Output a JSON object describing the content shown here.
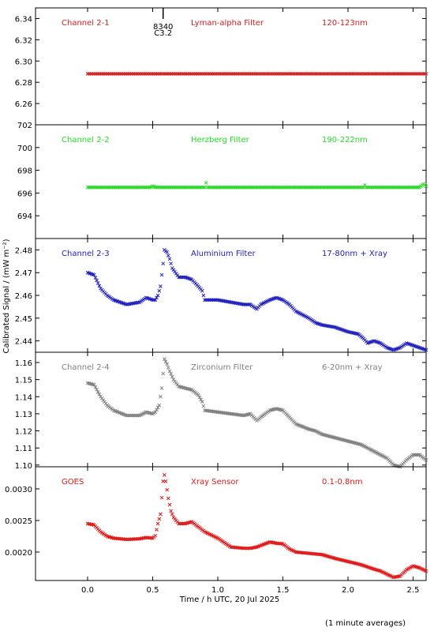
{
  "figure": {
    "ylabel": "Calibrated Signal / (mW m⁻²)",
    "xlabel": "Time / h UTC, 20 Jul 2025",
    "footnote": "(1 minute averages)",
    "annotation": {
      "x": 0.58,
      "label_top": "8340",
      "label_bottom": "C3.2"
    }
  },
  "chart_data": [
    {
      "type": "scatter",
      "labels": [
        "Channel 2-1",
        "Lyman-alpha Filter",
        "120-123nm"
      ],
      "color": "#d42020",
      "ylim": [
        6.24,
        6.35
      ],
      "yticks": [
        6.26,
        6.28,
        6.3,
        6.32,
        6.34
      ],
      "ytick_labels": [
        "6.26",
        "6.28",
        "6.30",
        "6.32",
        "6.34"
      ],
      "xlim": [
        -0.4,
        2.6
      ],
      "points": [
        [
          0.0,
          6.288
        ],
        [
          0.5,
          6.288
        ],
        [
          1.0,
          6.288
        ],
        [
          1.5,
          6.288
        ],
        [
          2.0,
          6.288
        ],
        [
          2.6,
          6.288
        ]
      ]
    },
    {
      "type": "scatter",
      "labels": [
        "Channel 2-2",
        "Herzberg Filter",
        "190-222nm"
      ],
      "color": "#22dd22",
      "ylim": [
        692,
        702
      ],
      "yticks": [
        694,
        696,
        698,
        700,
        702
      ],
      "ytick_labels": [
        "694",
        "696",
        "698",
        "700",
        "702"
      ],
      "xlim": [
        -0.4,
        2.6
      ],
      "points": [
        [
          0.0,
          696.5
        ],
        [
          0.48,
          696.5
        ],
        [
          0.5,
          696.6
        ],
        [
          0.52,
          696.5
        ],
        [
          0.9,
          696.5
        ],
        [
          0.91,
          696.9
        ],
        [
          0.92,
          696.5
        ],
        [
          2.12,
          696.5
        ],
        [
          2.13,
          696.7
        ],
        [
          2.14,
          696.5
        ],
        [
          2.55,
          696.5
        ],
        [
          2.58,
          696.8
        ],
        [
          2.6,
          696.6
        ]
      ]
    },
    {
      "type": "scatter",
      "labels": [
        "Channel 2-3",
        "Aluminium Filter",
        "17-80nm + Xray"
      ],
      "color": "#2020c0",
      "ylim": [
        2.435,
        2.485
      ],
      "yticks": [
        2.44,
        2.45,
        2.46,
        2.47,
        2.48
      ],
      "ytick_labels": [
        "2.44",
        "2.45",
        "2.46",
        "2.47",
        "2.48"
      ],
      "xlim": [
        -0.4,
        2.6
      ],
      "points": [
        [
          0.0,
          2.47
        ],
        [
          0.05,
          2.469
        ],
        [
          0.1,
          2.463
        ],
        [
          0.15,
          2.46
        ],
        [
          0.2,
          2.458
        ],
        [
          0.3,
          2.456
        ],
        [
          0.4,
          2.457
        ],
        [
          0.45,
          2.459
        ],
        [
          0.5,
          2.458
        ],
        [
          0.52,
          2.458
        ],
        [
          0.54,
          2.46
        ],
        [
          0.56,
          2.464
        ],
        [
          0.58,
          2.474
        ],
        [
          0.59,
          2.48
        ],
        [
          0.61,
          2.479
        ],
        [
          0.63,
          2.476
        ],
        [
          0.65,
          2.472
        ],
        [
          0.7,
          2.468
        ],
        [
          0.75,
          2.468
        ],
        [
          0.8,
          2.467
        ],
        [
          0.85,
          2.464
        ],
        [
          0.88,
          2.462
        ],
        [
          0.9,
          2.458
        ],
        [
          1.0,
          2.458
        ],
        [
          1.1,
          2.457
        ],
        [
          1.2,
          2.456
        ],
        [
          1.25,
          2.456
        ],
        [
          1.3,
          2.454
        ],
        [
          1.33,
          2.456
        ],
        [
          1.4,
          2.458
        ],
        [
          1.45,
          2.459
        ],
        [
          1.5,
          2.458
        ],
        [
          1.55,
          2.456
        ],
        [
          1.6,
          2.453
        ],
        [
          1.7,
          2.45
        ],
        [
          1.75,
          2.448
        ],
        [
          1.8,
          2.447
        ],
        [
          1.9,
          2.446
        ],
        [
          2.0,
          2.444
        ],
        [
          2.08,
          2.443
        ],
        [
          2.12,
          2.441
        ],
        [
          2.15,
          2.439
        ],
        [
          2.2,
          2.44
        ],
        [
          2.25,
          2.439
        ],
        [
          2.3,
          2.437
        ],
        [
          2.35,
          2.436
        ],
        [
          2.4,
          2.437
        ],
        [
          2.45,
          2.439
        ],
        [
          2.5,
          2.438
        ],
        [
          2.55,
          2.437
        ],
        [
          2.6,
          2.436
        ]
      ]
    },
    {
      "type": "scatter",
      "labels": [
        "Channel 2-4",
        "Zirconium Filter",
        "6-20nm + Xray"
      ],
      "color": "#808080",
      "ylim": [
        1.099,
        1.166
      ],
      "yticks": [
        1.1,
        1.11,
        1.12,
        1.13,
        1.14,
        1.15,
        1.16
      ],
      "ytick_labels": [
        "1.10",
        "1.11",
        "1.12",
        "1.13",
        "1.14",
        "1.15",
        "1.16"
      ],
      "xlim": [
        -0.4,
        2.6
      ],
      "points": [
        [
          0.0,
          1.148
        ],
        [
          0.05,
          1.147
        ],
        [
          0.1,
          1.14
        ],
        [
          0.15,
          1.135
        ],
        [
          0.2,
          1.132
        ],
        [
          0.3,
          1.129
        ],
        [
          0.4,
          1.129
        ],
        [
          0.45,
          1.131
        ],
        [
          0.5,
          1.13
        ],
        [
          0.52,
          1.131
        ],
        [
          0.55,
          1.135
        ],
        [
          0.57,
          1.145
        ],
        [
          0.59,
          1.162
        ],
        [
          0.61,
          1.159
        ],
        [
          0.63,
          1.155
        ],
        [
          0.66,
          1.15
        ],
        [
          0.7,
          1.146
        ],
        [
          0.8,
          1.144
        ],
        [
          0.85,
          1.141
        ],
        [
          0.88,
          1.137
        ],
        [
          0.9,
          1.132
        ],
        [
          1.0,
          1.131
        ],
        [
          1.1,
          1.13
        ],
        [
          1.2,
          1.129
        ],
        [
          1.25,
          1.13
        ],
        [
          1.3,
          1.126
        ],
        [
          1.33,
          1.128
        ],
        [
          1.4,
          1.132
        ],
        [
          1.45,
          1.133
        ],
        [
          1.5,
          1.132
        ],
        [
          1.55,
          1.128
        ],
        [
          1.6,
          1.124
        ],
        [
          1.7,
          1.121
        ],
        [
          1.75,
          1.12
        ],
        [
          1.8,
          1.118
        ],
        [
          1.9,
          1.116
        ],
        [
          2.0,
          1.114
        ],
        [
          2.1,
          1.112
        ],
        [
          2.2,
          1.108
        ],
        [
          2.25,
          1.106
        ],
        [
          2.3,
          1.104
        ],
        [
          2.35,
          1.1
        ],
        [
          2.4,
          1.099
        ],
        [
          2.45,
          1.103
        ],
        [
          2.5,
          1.106
        ],
        [
          2.55,
          1.106
        ],
        [
          2.6,
          1.103
        ]
      ]
    },
    {
      "type": "scatter",
      "labels": [
        "GOES",
        "Xray Sensor",
        "0.1-0.8nm"
      ],
      "color": "#e01818",
      "ylim": [
        0.00155,
        0.00335
      ],
      "yticks": [
        0.002,
        0.0025,
        0.003
      ],
      "ytick_labels": [
        "0.0020",
        "0.0025",
        "0.0030"
      ],
      "xlim": [
        -0.4,
        2.6
      ],
      "points": [
        [
          0.0,
          0.00245
        ],
        [
          0.05,
          0.00243
        ],
        [
          0.1,
          0.00232
        ],
        [
          0.15,
          0.00225
        ],
        [
          0.2,
          0.00222
        ],
        [
          0.3,
          0.0022
        ],
        [
          0.4,
          0.00221
        ],
        [
          0.45,
          0.00223
        ],
        [
          0.5,
          0.00222
        ],
        [
          0.52,
          0.00226
        ],
        [
          0.54,
          0.00245
        ],
        [
          0.56,
          0.0026
        ],
        [
          0.58,
          0.00312
        ],
        [
          0.59,
          0.00322
        ],
        [
          0.6,
          0.00312
        ],
        [
          0.62,
          0.00285
        ],
        [
          0.64,
          0.00265
        ],
        [
          0.66,
          0.00255
        ],
        [
          0.7,
          0.00245
        ],
        [
          0.75,
          0.00245
        ],
        [
          0.8,
          0.00248
        ],
        [
          0.85,
          0.0024
        ],
        [
          0.9,
          0.00232
        ],
        [
          1.0,
          0.00222
        ],
        [
          1.1,
          0.00208
        ],
        [
          1.2,
          0.00206
        ],
        [
          1.25,
          0.00206
        ],
        [
          1.3,
          0.00208
        ],
        [
          1.35,
          0.00212
        ],
        [
          1.4,
          0.00216
        ],
        [
          1.45,
          0.00214
        ],
        [
          1.5,
          0.00213
        ],
        [
          1.55,
          0.00205
        ],
        [
          1.6,
          0.002
        ],
        [
          1.7,
          0.00198
        ],
        [
          1.8,
          0.00196
        ],
        [
          1.9,
          0.0019
        ],
        [
          2.0,
          0.00185
        ],
        [
          2.1,
          0.0018
        ],
        [
          2.2,
          0.00173
        ],
        [
          2.25,
          0.0017
        ],
        [
          2.3,
          0.00165
        ],
        [
          2.35,
          0.0016
        ],
        [
          2.4,
          0.00162
        ],
        [
          2.45,
          0.00172
        ],
        [
          2.5,
          0.00178
        ],
        [
          2.55,
          0.00175
        ],
        [
          2.6,
          0.0017
        ]
      ]
    }
  ],
  "xaxis": {
    "xlim": [
      -0.4,
      2.6
    ],
    "ticks": [
      0.0,
      0.5,
      1.0,
      1.5,
      2.0,
      2.5
    ],
    "tick_labels": [
      "0.0",
      "0.5",
      "1.0",
      "1.5",
      "2.0",
      "2.5"
    ]
  }
}
